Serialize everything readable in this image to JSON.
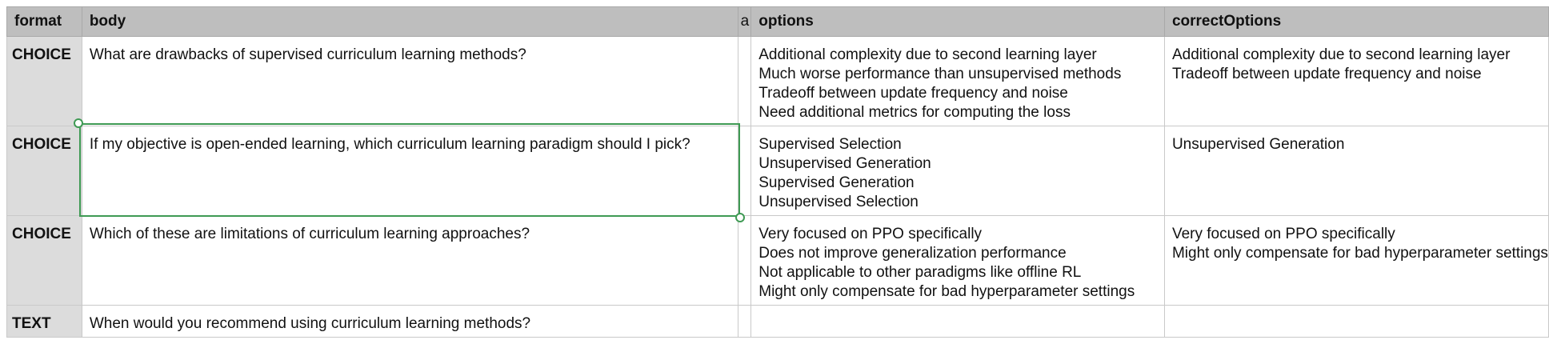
{
  "columns": [
    "format",
    "body",
    "a",
    "options",
    "correctOptions"
  ],
  "rows": [
    {
      "format": "CHOICE",
      "body": "What are drawbacks of supervised curriculum learning methods?",
      "options": [
        "Additional complexity due to second learning layer",
        "Much worse performance than unsupervised methods",
        "Tradeoff between update frequency and noise",
        "Need additional metrics for computing the loss"
      ],
      "correctOptions": [
        "Additional complexity due to second learning layer",
        "Tradeoff between update frequency and noise"
      ]
    },
    {
      "format": "CHOICE",
      "body": "If my objective is open-ended learning, which curriculum learning paradigm should I pick?",
      "options": [
        "Supervised Selection",
        "Unsupervised Generation",
        "Supervised Generation",
        "Unsupervised Selection"
      ],
      "correctOptions": [
        "Unsupervised Generation"
      ]
    },
    {
      "format": "CHOICE",
      "body": "Which of these are limitations of curriculum learning approaches?",
      "options": [
        "Very focused on PPO specifically",
        "Does not improve generalization performance",
        "Not applicable to other paradigms like offline RL",
        "Might only compensate for bad hyperparameter settings"
      ],
      "correctOptions": [
        "Very focused on PPO specifically",
        "Might only compensate for bad hyperparameter settings"
      ]
    },
    {
      "format": "TEXT",
      "body": "When would you recommend using curriculum learning methods?",
      "options": [],
      "correctOptions": []
    }
  ],
  "selection": {
    "row": 1,
    "column": "body"
  },
  "colors": {
    "header_bg": "#bebebe",
    "format_bg": "#dcdcdc",
    "selection": "#3f9a54"
  }
}
